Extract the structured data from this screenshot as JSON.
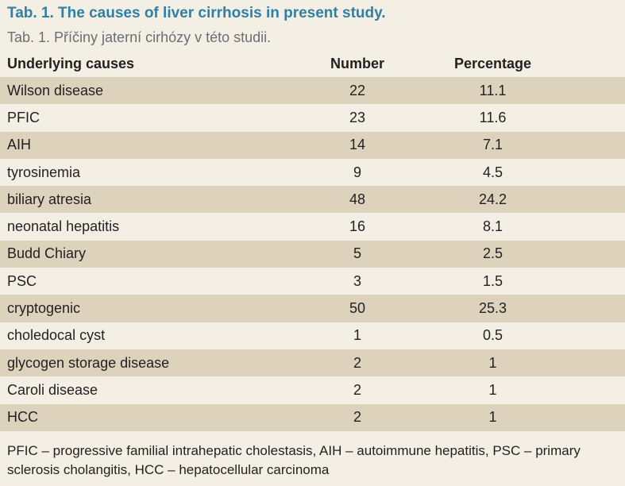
{
  "title_en": "Tab. 1. The causes of liver cirrhosis in present study.",
  "title_cz": "Tab. 1. Příčiny jaterní cirhózy v této studii.",
  "table": {
    "headers": [
      "Underlying causes",
      "Number",
      "Percentage"
    ],
    "rows": [
      [
        "Wilson disease",
        "22",
        "11.1"
      ],
      [
        "PFIC",
        "23",
        "11.6"
      ],
      [
        "AIH",
        "14",
        "7.1"
      ],
      [
        "tyrosinemia",
        "9",
        "4.5"
      ],
      [
        "biliary atresia",
        "48",
        "24.2"
      ],
      [
        "neonatal hepatitis",
        "16",
        "8.1"
      ],
      [
        "Budd Chiary",
        "5",
        "2.5"
      ],
      [
        "PSC",
        "3",
        "1.5"
      ],
      [
        "cryptogenic",
        "50",
        "25.3"
      ],
      [
        "choledocal cyst",
        "1",
        "0.5"
      ],
      [
        "glycogen storage disease",
        "2",
        "1"
      ],
      [
        "Caroli disease",
        "2",
        "1"
      ],
      [
        "HCC",
        "2",
        "1"
      ]
    ]
  },
  "footnote": "PFIC – progressive familial intrahepatic cholestasis, AIH – autoimmune hepatitis, PSC – primary sclerosis cholangitis, HCC – hepatocellular carcinoma",
  "colors": {
    "title": "#2f7fa6",
    "background": "#f3efe4",
    "row_shade": "#ddd3bd"
  }
}
